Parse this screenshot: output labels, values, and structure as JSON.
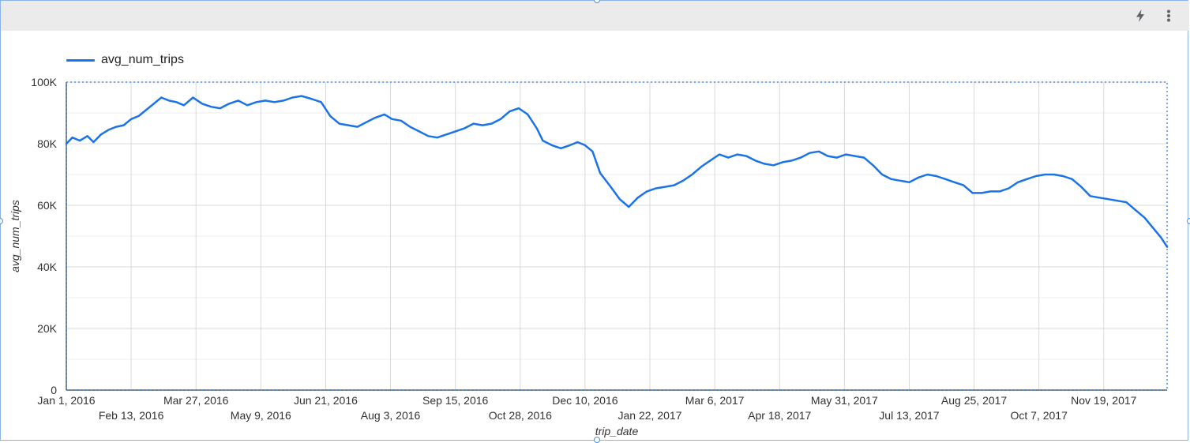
{
  "toolbar": {
    "icons": [
      "lightning-icon",
      "more-vert-icon"
    ]
  },
  "colors": {
    "series": "#1a73e8",
    "grid": "#d9d9d9",
    "toolbar": "#ebebeb",
    "selection": "#4a90e2"
  },
  "chart_data": {
    "type": "line",
    "xlabel": "trip_date",
    "ylabel": "avg_num_trips",
    "ylim": [
      0,
      100000
    ],
    "yticks": [
      0,
      20000,
      40000,
      60000,
      80000,
      100000
    ],
    "ytick_labels": [
      "0",
      "20K",
      "40K",
      "60K",
      "80K",
      "100K"
    ],
    "xlim": [
      "2016-01-01",
      "2017-12-31"
    ],
    "xticks": [
      "2016-01-01",
      "2016-02-13",
      "2016-03-27",
      "2016-05-09",
      "2016-06-21",
      "2016-08-03",
      "2016-09-15",
      "2016-10-28",
      "2016-12-10",
      "2017-01-22",
      "2017-03-06",
      "2017-04-18",
      "2017-05-31",
      "2017-07-13",
      "2017-08-25",
      "2017-10-07",
      "2017-11-19"
    ],
    "xtick_labels": [
      "Jan 1, 2016",
      "Feb 13, 2016",
      "Mar 27, 2016",
      "May 9, 2016",
      "Jun 21, 2016",
      "Aug 3, 2016",
      "Sep 15, 2016",
      "Oct 28, 2016",
      "Dec 10, 2016",
      "Jan 22, 2017",
      "Mar 6, 2017",
      "Apr 18, 2017",
      "May 31, 2017",
      "Jul 13, 2017",
      "Aug 25, 2017",
      "Oct 7, 2017",
      "Nov 19, 2017"
    ],
    "grid": true,
    "legend": "top-left",
    "series": [
      {
        "name": "avg_num_trips",
        "points": [
          [
            "2016-01-01",
            80000
          ],
          [
            "2016-01-05",
            82000
          ],
          [
            "2016-01-10",
            81000
          ],
          [
            "2016-01-15",
            82500
          ],
          [
            "2016-01-19",
            80500
          ],
          [
            "2016-01-24",
            83000
          ],
          [
            "2016-01-29",
            84500
          ],
          [
            "2016-02-03",
            85500
          ],
          [
            "2016-02-08",
            86000
          ],
          [
            "2016-02-13",
            88000
          ],
          [
            "2016-02-18",
            89000
          ],
          [
            "2016-02-23",
            91000
          ],
          [
            "2016-02-28",
            93000
          ],
          [
            "2016-03-04",
            95000
          ],
          [
            "2016-03-09",
            94000
          ],
          [
            "2016-03-14",
            93500
          ],
          [
            "2016-03-19",
            92500
          ],
          [
            "2016-03-25",
            95000
          ],
          [
            "2016-03-31",
            93000
          ],
          [
            "2016-04-06",
            92000
          ],
          [
            "2016-04-12",
            91500
          ],
          [
            "2016-04-18",
            93000
          ],
          [
            "2016-04-24",
            94000
          ],
          [
            "2016-04-30",
            92500
          ],
          [
            "2016-05-06",
            93500
          ],
          [
            "2016-05-12",
            94000
          ],
          [
            "2016-05-18",
            93500
          ],
          [
            "2016-05-24",
            94000
          ],
          [
            "2016-05-30",
            95000
          ],
          [
            "2016-06-05",
            95500
          ],
          [
            "2016-06-12",
            94500
          ],
          [
            "2016-06-18",
            93500
          ],
          [
            "2016-06-24",
            89000
          ],
          [
            "2016-06-30",
            86500
          ],
          [
            "2016-07-06",
            86000
          ],
          [
            "2016-07-12",
            85500
          ],
          [
            "2016-07-18",
            87000
          ],
          [
            "2016-07-24",
            88500
          ],
          [
            "2016-07-30",
            89500
          ],
          [
            "2016-08-04",
            88000
          ],
          [
            "2016-08-10",
            87500
          ],
          [
            "2016-08-16",
            85500
          ],
          [
            "2016-08-22",
            84000
          ],
          [
            "2016-08-28",
            82500
          ],
          [
            "2016-09-03",
            82000
          ],
          [
            "2016-09-09",
            83000
          ],
          [
            "2016-09-15",
            84000
          ],
          [
            "2016-09-21",
            85000
          ],
          [
            "2016-09-27",
            86500
          ],
          [
            "2016-10-03",
            86000
          ],
          [
            "2016-10-09",
            86500
          ],
          [
            "2016-10-15",
            88000
          ],
          [
            "2016-10-21",
            90500
          ],
          [
            "2016-10-27",
            91500
          ],
          [
            "2016-11-02",
            89500
          ],
          [
            "2016-11-08",
            85000
          ],
          [
            "2016-11-12",
            81000
          ],
          [
            "2016-11-18",
            79500
          ],
          [
            "2016-11-24",
            78500
          ],
          [
            "2016-11-30",
            79500
          ],
          [
            "2016-12-05",
            80500
          ],
          [
            "2016-12-10",
            79500
          ],
          [
            "2016-12-15",
            77500
          ],
          [
            "2016-12-20",
            70500
          ],
          [
            "2016-12-27",
            66000
          ],
          [
            "2017-01-02",
            62000
          ],
          [
            "2017-01-08",
            59500
          ],
          [
            "2017-01-14",
            62500
          ],
          [
            "2017-01-20",
            64500
          ],
          [
            "2017-01-26",
            65500
          ],
          [
            "2017-02-01",
            66000
          ],
          [
            "2017-02-07",
            66500
          ],
          [
            "2017-02-13",
            68000
          ],
          [
            "2017-02-19",
            70000
          ],
          [
            "2017-02-25",
            72500
          ],
          [
            "2017-03-03",
            74500
          ],
          [
            "2017-03-09",
            76500
          ],
          [
            "2017-03-15",
            75500
          ],
          [
            "2017-03-21",
            76500
          ],
          [
            "2017-03-27",
            76000
          ],
          [
            "2017-04-02",
            74500
          ],
          [
            "2017-04-08",
            73500
          ],
          [
            "2017-04-14",
            73000
          ],
          [
            "2017-04-20",
            74000
          ],
          [
            "2017-04-26",
            74500
          ],
          [
            "2017-05-02",
            75500
          ],
          [
            "2017-05-08",
            77000
          ],
          [
            "2017-05-14",
            77500
          ],
          [
            "2017-05-20",
            76000
          ],
          [
            "2017-05-26",
            75500
          ],
          [
            "2017-06-01",
            76500
          ],
          [
            "2017-06-07",
            76000
          ],
          [
            "2017-06-13",
            75500
          ],
          [
            "2017-06-19",
            73000
          ],
          [
            "2017-06-25",
            70000
          ],
          [
            "2017-07-01",
            68500
          ],
          [
            "2017-07-07",
            68000
          ],
          [
            "2017-07-13",
            67500
          ],
          [
            "2017-07-19",
            69000
          ],
          [
            "2017-07-25",
            70000
          ],
          [
            "2017-07-31",
            69500
          ],
          [
            "2017-08-06",
            68500
          ],
          [
            "2017-08-12",
            67500
          ],
          [
            "2017-08-18",
            66500
          ],
          [
            "2017-08-24",
            64000
          ],
          [
            "2017-08-30",
            64000
          ],
          [
            "2017-09-05",
            64500
          ],
          [
            "2017-09-11",
            64500
          ],
          [
            "2017-09-17",
            65500
          ],
          [
            "2017-09-23",
            67500
          ],
          [
            "2017-09-29",
            68500
          ],
          [
            "2017-10-05",
            69500
          ],
          [
            "2017-10-11",
            70000
          ],
          [
            "2017-10-17",
            70000
          ],
          [
            "2017-10-23",
            69500
          ],
          [
            "2017-10-29",
            68500
          ],
          [
            "2017-11-04",
            66000
          ],
          [
            "2017-11-10",
            63000
          ],
          [
            "2017-11-16",
            62500
          ],
          [
            "2017-11-22",
            62000
          ],
          [
            "2017-11-28",
            61500
          ],
          [
            "2017-12-04",
            61000
          ],
          [
            "2017-12-10",
            58500
          ],
          [
            "2017-12-16",
            56000
          ],
          [
            "2017-12-22",
            52500
          ],
          [
            "2017-12-27",
            49500
          ],
          [
            "2017-12-31",
            46500
          ]
        ]
      }
    ]
  }
}
